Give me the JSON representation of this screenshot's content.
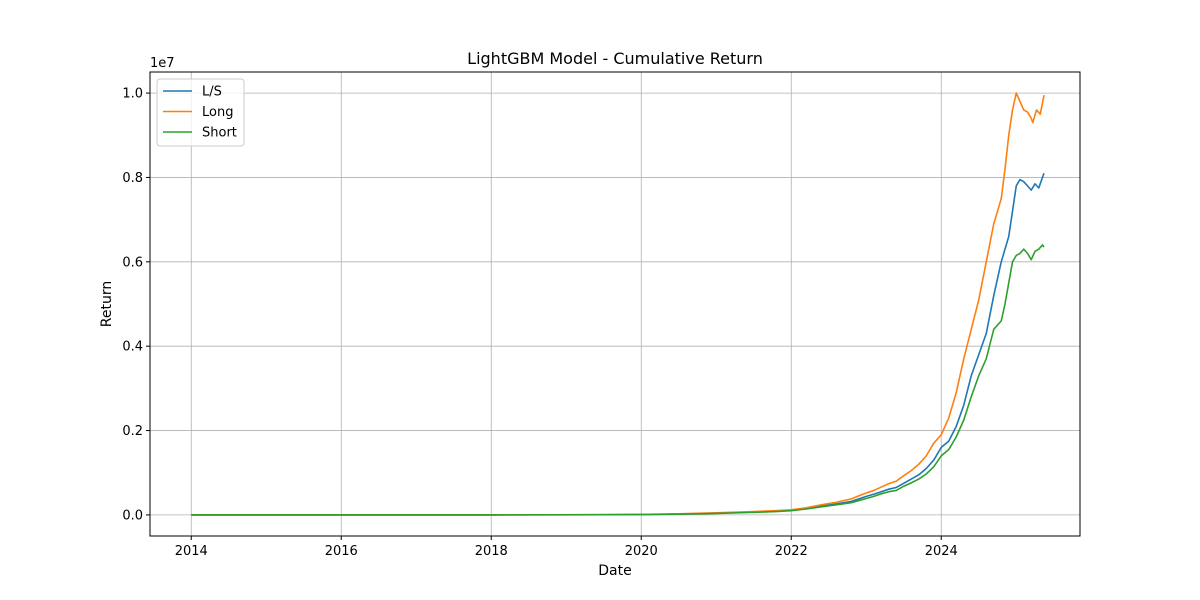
{
  "chart_data": {
    "type": "line",
    "title": "LightGBM Model - Cumulative Return",
    "xlabel": "Date",
    "ylabel": "Return",
    "y_scale_label": "1e7",
    "xlim": [
      2013.45,
      2025.85
    ],
    "ylim": [
      -0.05,
      1.05
    ],
    "x_ticks": [
      2014,
      2016,
      2018,
      2020,
      2022,
      2024
    ],
    "x_tick_labels": [
      "2014",
      "2016",
      "2018",
      "2020",
      "2022",
      "2024"
    ],
    "y_ticks": [
      0.0,
      0.2,
      0.4,
      0.6,
      0.8,
      1.0
    ],
    "y_tick_labels": [
      "0.0",
      "0.2",
      "0.4",
      "0.6",
      "0.8",
      "1.0"
    ],
    "grid": true,
    "legend_position": "top-left",
    "series": [
      {
        "name": "L/S",
        "color": "#1f77b4",
        "points": [
          [
            2014.0,
            0.0
          ],
          [
            2016.0,
            0.0
          ],
          [
            2018.0,
            0.0
          ],
          [
            2019.5,
            0.0005
          ],
          [
            2020.0,
            0.001
          ],
          [
            2020.5,
            0.002
          ],
          [
            2021.0,
            0.004
          ],
          [
            2021.5,
            0.007
          ],
          [
            2021.8,
            0.009
          ],
          [
            2022.0,
            0.011
          ],
          [
            2022.2,
            0.015
          ],
          [
            2022.4,
            0.021
          ],
          [
            2022.6,
            0.026
          ],
          [
            2022.8,
            0.032
          ],
          [
            2022.9,
            0.038
          ],
          [
            2023.0,
            0.044
          ],
          [
            2023.1,
            0.049
          ],
          [
            2023.2,
            0.055
          ],
          [
            2023.3,
            0.061
          ],
          [
            2023.4,
            0.065
          ],
          [
            2023.5,
            0.075
          ],
          [
            2023.6,
            0.085
          ],
          [
            2023.7,
            0.095
          ],
          [
            2023.8,
            0.11
          ],
          [
            2023.9,
            0.13
          ],
          [
            2024.0,
            0.16
          ],
          [
            2024.1,
            0.175
          ],
          [
            2024.2,
            0.21
          ],
          [
            2024.3,
            0.26
          ],
          [
            2024.4,
            0.33
          ],
          [
            2024.5,
            0.38
          ],
          [
            2024.6,
            0.43
          ],
          [
            2024.7,
            0.52
          ],
          [
            2024.8,
            0.6
          ],
          [
            2024.85,
            0.63
          ],
          [
            2024.9,
            0.66
          ],
          [
            2024.95,
            0.72
          ],
          [
            2025.0,
            0.78
          ],
          [
            2025.05,
            0.795
          ],
          [
            2025.1,
            0.79
          ],
          [
            2025.15,
            0.78
          ],
          [
            2025.2,
            0.77
          ],
          [
            2025.25,
            0.785
          ],
          [
            2025.3,
            0.775
          ],
          [
            2025.35,
            0.8
          ],
          [
            2025.37,
            0.81
          ]
        ]
      },
      {
        "name": "Long",
        "color": "#ff7f0e",
        "points": [
          [
            2014.0,
            0.0
          ],
          [
            2016.0,
            0.0
          ],
          [
            2018.0,
            0.0
          ],
          [
            2019.5,
            0.0006
          ],
          [
            2020.0,
            0.0012
          ],
          [
            2020.5,
            0.0025
          ],
          [
            2021.0,
            0.005
          ],
          [
            2021.5,
            0.008
          ],
          [
            2021.8,
            0.01
          ],
          [
            2022.0,
            0.012
          ],
          [
            2022.2,
            0.017
          ],
          [
            2022.4,
            0.024
          ],
          [
            2022.6,
            0.03
          ],
          [
            2022.8,
            0.038
          ],
          [
            2022.9,
            0.045
          ],
          [
            2023.0,
            0.052
          ],
          [
            2023.1,
            0.058
          ],
          [
            2023.2,
            0.066
          ],
          [
            2023.3,
            0.074
          ],
          [
            2023.4,
            0.08
          ],
          [
            2023.5,
            0.093
          ],
          [
            2023.6,
            0.105
          ],
          [
            2023.7,
            0.12
          ],
          [
            2023.8,
            0.14
          ],
          [
            2023.9,
            0.17
          ],
          [
            2024.0,
            0.19
          ],
          [
            2024.1,
            0.23
          ],
          [
            2024.2,
            0.29
          ],
          [
            2024.3,
            0.37
          ],
          [
            2024.4,
            0.44
          ],
          [
            2024.5,
            0.51
          ],
          [
            2024.6,
            0.6
          ],
          [
            2024.7,
            0.69
          ],
          [
            2024.8,
            0.75
          ],
          [
            2024.85,
            0.82
          ],
          [
            2024.9,
            0.9
          ],
          [
            2024.95,
            0.96
          ],
          [
            2025.0,
            1.0
          ],
          [
            2025.05,
            0.98
          ],
          [
            2025.1,
            0.96
          ],
          [
            2025.15,
            0.955
          ],
          [
            2025.2,
            0.94
          ],
          [
            2025.22,
            0.93
          ],
          [
            2025.27,
            0.96
          ],
          [
            2025.32,
            0.95
          ],
          [
            2025.37,
            0.995
          ]
        ]
      },
      {
        "name": "Short",
        "color": "#2ca02c",
        "points": [
          [
            2014.0,
            0.0
          ],
          [
            2016.0,
            0.0
          ],
          [
            2018.0,
            0.0
          ],
          [
            2019.5,
            0.0004
          ],
          [
            2020.0,
            0.0009
          ],
          [
            2020.5,
            0.0018
          ],
          [
            2021.0,
            0.0035
          ],
          [
            2021.5,
            0.006
          ],
          [
            2021.8,
            0.008
          ],
          [
            2022.0,
            0.01
          ],
          [
            2022.2,
            0.014
          ],
          [
            2022.4,
            0.019
          ],
          [
            2022.6,
            0.024
          ],
          [
            2022.8,
            0.029
          ],
          [
            2022.9,
            0.034
          ],
          [
            2023.0,
            0.039
          ],
          [
            2023.1,
            0.044
          ],
          [
            2023.2,
            0.05
          ],
          [
            2023.3,
            0.055
          ],
          [
            2023.4,
            0.058
          ],
          [
            2023.5,
            0.068
          ],
          [
            2023.6,
            0.076
          ],
          [
            2023.7,
            0.085
          ],
          [
            2023.8,
            0.097
          ],
          [
            2023.9,
            0.114
          ],
          [
            2024.0,
            0.14
          ],
          [
            2024.1,
            0.155
          ],
          [
            2024.2,
            0.185
          ],
          [
            2024.3,
            0.225
          ],
          [
            2024.4,
            0.28
          ],
          [
            2024.5,
            0.33
          ],
          [
            2024.6,
            0.37
          ],
          [
            2024.7,
            0.44
          ],
          [
            2024.8,
            0.46
          ],
          [
            2024.85,
            0.5
          ],
          [
            2024.9,
            0.55
          ],
          [
            2024.95,
            0.6
          ],
          [
            2025.0,
            0.615
          ],
          [
            2025.05,
            0.62
          ],
          [
            2025.1,
            0.63
          ],
          [
            2025.15,
            0.62
          ],
          [
            2025.2,
            0.605
          ],
          [
            2025.25,
            0.625
          ],
          [
            2025.3,
            0.63
          ],
          [
            2025.35,
            0.64
          ],
          [
            2025.37,
            0.635
          ]
        ]
      }
    ]
  }
}
